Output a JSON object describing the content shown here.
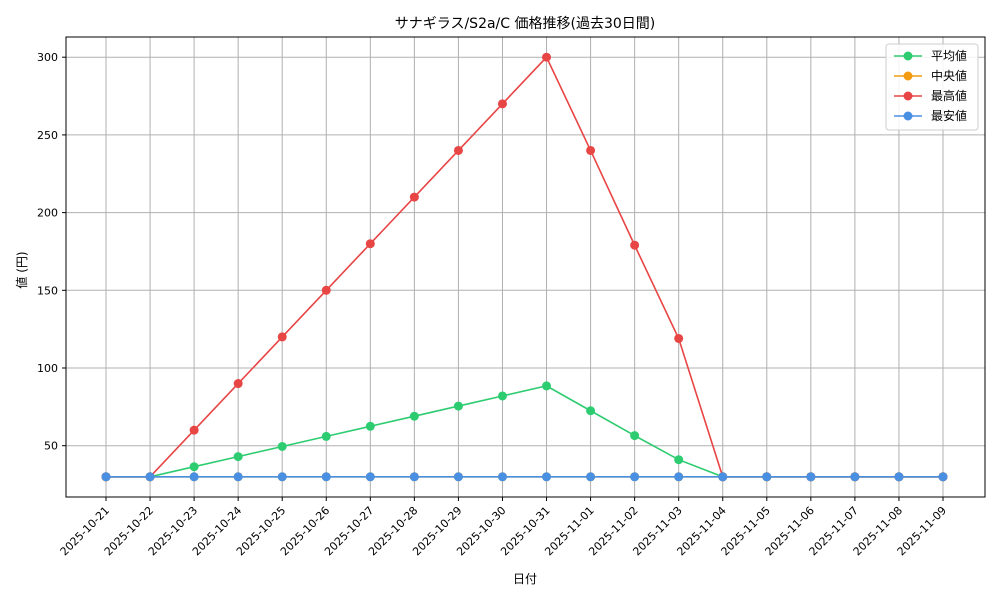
{
  "chart_data": {
    "type": "line",
    "title": "サナギラス/S2a/C 価格推移(過去30日間)",
    "xlabel": "日付",
    "ylabel": "値 (円)",
    "x": [
      "2025-10-21",
      "2025-10-22",
      "2025-10-23",
      "2025-10-24",
      "2025-10-25",
      "2025-10-26",
      "2025-10-27",
      "2025-10-28",
      "2025-10-29",
      "2025-10-30",
      "2025-10-31",
      "2025-11-01",
      "2025-11-02",
      "2025-11-03",
      "2025-11-04",
      "2025-11-05",
      "2025-11-06",
      "2025-11-07",
      "2025-11-08",
      "2025-11-09"
    ],
    "ylim": [
      17,
      313
    ],
    "yticks": [
      50,
      100,
      150,
      200,
      250,
      300
    ],
    "grid": true,
    "legend_position": "top-right",
    "series": [
      {
        "name": "平均値",
        "color": "#2ecc71",
        "values": [
          30,
          30,
          36.5,
          43,
          49.5,
          56,
          62.5,
          69,
          75.5,
          82,
          88.5,
          72.5,
          56.5,
          41,
          30,
          30,
          30,
          30,
          30,
          30
        ]
      },
      {
        "name": "中央値",
        "color": "#f39c12",
        "values": [
          30,
          30,
          30,
          30,
          30,
          30,
          30,
          30,
          30,
          30,
          30,
          30,
          30,
          30,
          30,
          30,
          30,
          30,
          30,
          30
        ]
      },
      {
        "name": "最高値",
        "color": "#e84545",
        "values": [
          30,
          30,
          60,
          90,
          120,
          150,
          180,
          210,
          240,
          270,
          300,
          240,
          179,
          119,
          30,
          30,
          30,
          30,
          30,
          30
        ]
      },
      {
        "name": "最安値",
        "color": "#4a90e2",
        "values": [
          30,
          30,
          30,
          30,
          30,
          30,
          30,
          30,
          30,
          30,
          30,
          30,
          30,
          30,
          30,
          30,
          30,
          30,
          30,
          30
        ]
      }
    ]
  }
}
